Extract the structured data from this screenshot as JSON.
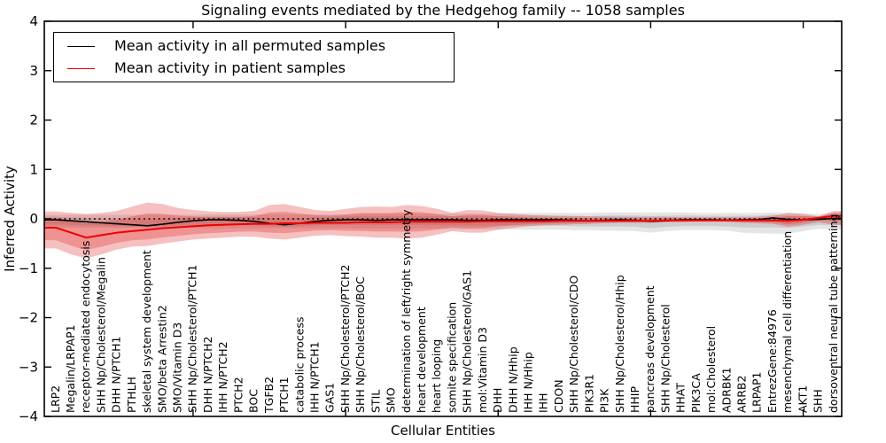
{
  "chart_data": {
    "type": "line",
    "title": "Signaling events mediated by the Hedgehog family -- 1058 samples",
    "xlabel": "Cellular Entities",
    "ylabel": "Inferred Activity",
    "ylim": [
      -4,
      4
    ],
    "yticks": [
      4,
      3,
      2,
      1,
      0,
      -1,
      -2,
      -3,
      -4
    ],
    "xtick_indices": [
      9,
      19,
      29,
      39,
      49
    ],
    "grid": false,
    "legend_position": "upper left",
    "zero_line": {
      "y": 0,
      "style": "dotted",
      "color": "#000000"
    },
    "band_inner_scale": 0.6,
    "categories": [
      "LRP2",
      "Megalin/LRPAP1",
      "receptor-mediated endocytosis",
      "SHH Np/Cholesterol/Megalin",
      "DHH N/PTCH1",
      "PTHLH",
      "skeletal system development",
      "SMO/beta Arrestin2",
      "SMO/Vitamin D3",
      "SHH Np/Cholesterol/PTCH1",
      "DHH N/PTCH2",
      "IHH N/PTCH2",
      "PTCH2",
      "BOC",
      "TGFB2",
      "PTCH1",
      "catabolic process",
      "IHH N/PTCH1",
      "GAS1",
      "SHH Np/Cholesterol/PTCH2",
      "SHH Np/Cholesterol/BOC",
      "STIL",
      "SMO",
      "determination of left/right symmetry",
      "heart development",
      "heart looping",
      "somite specification",
      "SHH Np/Cholesterol/GAS1",
      "mol:Vitamin D3",
      "DHH",
      "DHH N/Hhip",
      "IHH N/Hhip",
      "IHH",
      "CDON",
      "SHH Np/Cholesterol/CDO",
      "PIK3R1",
      "PI3K",
      "SHH Np/Cholesterol/Hhip",
      "HHIP",
      "pancreas development",
      "SHH Np/Cholesterol",
      "HHAT",
      "PIK3CA",
      "mol:Cholesterol",
      "ADRBK1",
      "ARRB2",
      "LRPAP1",
      "EntrezGene:84976",
      "mesenchymal cell differentiation",
      "AKT1",
      "SHH",
      "dorsoventral neural tube patterning"
    ],
    "series": [
      {
        "name": "Mean activity in all permuted samples",
        "color": "#000000",
        "band_color": "#000000",
        "band_opacity": 0.1,
        "values": [
          -0.02,
          -0.04,
          -0.06,
          -0.08,
          -0.1,
          -0.12,
          -0.14,
          -0.11,
          -0.07,
          -0.04,
          -0.02,
          -0.02,
          -0.03,
          -0.05,
          -0.09,
          -0.12,
          -0.09,
          -0.05,
          -0.03,
          -0.02,
          -0.02,
          -0.03,
          -0.02,
          -0.02,
          -0.02,
          -0.02,
          -0.02,
          -0.03,
          -0.03,
          -0.02,
          -0.02,
          -0.02,
          -0.02,
          -0.02,
          -0.03,
          -0.04,
          -0.03,
          -0.02,
          -0.03,
          -0.05,
          -0.04,
          -0.02,
          -0.02,
          -0.02,
          -0.03,
          -0.02,
          -0.02,
          0.02,
          -0.01,
          -0.02,
          -0.01,
          0.01
        ],
        "band_upper": [
          0.08,
          0.08,
          0.08,
          0.08,
          0.08,
          0.08,
          0.08,
          0.08,
          0.08,
          0.08,
          0.09,
          0.09,
          0.09,
          0.09,
          0.09,
          0.09,
          0.09,
          0.09,
          0.09,
          0.09,
          0.1,
          0.1,
          0.1,
          0.1,
          0.1,
          0.1,
          0.11,
          0.11,
          0.11,
          0.11,
          0.12,
          0.12,
          0.12,
          0.12,
          0.12,
          0.12,
          0.13,
          0.13,
          0.13,
          0.13,
          0.13,
          0.13,
          0.12,
          0.12,
          0.12,
          0.12,
          0.12,
          0.13,
          0.12,
          0.11,
          0.1,
          0.12
        ],
        "band_lower": [
          -0.18,
          -0.18,
          -0.18,
          -0.18,
          -0.18,
          -0.18,
          -0.18,
          -0.18,
          -0.18,
          -0.18,
          -0.19,
          -0.19,
          -0.19,
          -0.19,
          -0.19,
          -0.19,
          -0.19,
          -0.19,
          -0.19,
          -0.19,
          -0.2,
          -0.2,
          -0.2,
          -0.2,
          -0.2,
          -0.2,
          -0.21,
          -0.21,
          -0.21,
          -0.21,
          -0.22,
          -0.22,
          -0.22,
          -0.22,
          -0.23,
          -0.23,
          -0.24,
          -0.24,
          -0.25,
          -0.28,
          -0.25,
          -0.23,
          -0.23,
          -0.23,
          -0.24,
          -0.28,
          -0.29,
          -0.3,
          -0.3,
          -0.25,
          -0.2,
          -0.22
        ]
      },
      {
        "name": "Mean activity in patient samples",
        "color": "#ee0000",
        "band_color": "#dd1c1c",
        "band_opacity": 0.28,
        "values": [
          -0.18,
          -0.28,
          -0.38,
          -0.33,
          -0.28,
          -0.25,
          -0.22,
          -0.19,
          -0.17,
          -0.15,
          -0.13,
          -0.12,
          -0.11,
          -0.1,
          -0.1,
          -0.09,
          -0.09,
          -0.08,
          -0.08,
          -0.08,
          -0.07,
          -0.07,
          -0.07,
          -0.06,
          -0.06,
          -0.06,
          -0.06,
          -0.06,
          -0.05,
          -0.05,
          -0.05,
          -0.05,
          -0.05,
          -0.04,
          -0.04,
          -0.04,
          -0.04,
          -0.04,
          -0.04,
          -0.04,
          -0.03,
          -0.03,
          -0.03,
          -0.03,
          -0.03,
          -0.03,
          -0.03,
          -0.03,
          -0.04,
          -0.02,
          0.02,
          0.06
        ],
        "band_upper": [
          0.15,
          0.12,
          0.1,
          0.12,
          0.16,
          0.25,
          0.33,
          0.3,
          0.22,
          0.18,
          0.15,
          0.14,
          0.14,
          0.16,
          0.28,
          0.3,
          0.24,
          0.18,
          0.16,
          0.2,
          0.24,
          0.25,
          0.24,
          0.28,
          0.26,
          0.2,
          0.12,
          0.18,
          0.17,
          0.12,
          0.1,
          0.08,
          0.07,
          0.06,
          0.06,
          0.05,
          0.05,
          0.04,
          0.04,
          0.04,
          0.04,
          0.03,
          0.03,
          0.03,
          0.03,
          0.03,
          0.04,
          0.06,
          0.12,
          0.1,
          0.05,
          0.16
        ],
        "band_lower": [
          -0.6,
          -0.72,
          -0.8,
          -0.72,
          -0.62,
          -0.56,
          -0.55,
          -0.5,
          -0.46,
          -0.42,
          -0.4,
          -0.38,
          -0.36,
          -0.36,
          -0.4,
          -0.42,
          -0.38,
          -0.34,
          -0.33,
          -0.35,
          -0.36,
          -0.38,
          -0.38,
          -0.4,
          -0.38,
          -0.32,
          -0.25,
          -0.28,
          -0.28,
          -0.22,
          -0.18,
          -0.15,
          -0.13,
          -0.12,
          -0.11,
          -0.1,
          -0.09,
          -0.08,
          -0.08,
          -0.08,
          -0.07,
          -0.07,
          -0.06,
          -0.06,
          -0.06,
          -0.08,
          -0.09,
          -0.1,
          -0.16,
          -0.12,
          -0.07,
          -0.12
        ]
      }
    ]
  }
}
